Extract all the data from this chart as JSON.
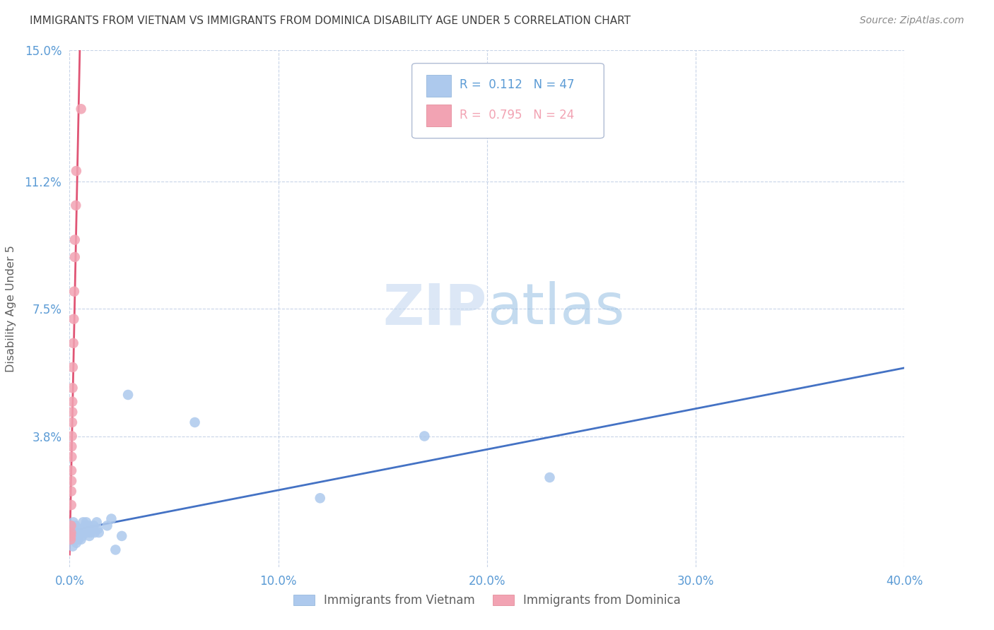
{
  "title": "IMMIGRANTS FROM VIETNAM VS IMMIGRANTS FROM DOMINICA DISABILITY AGE UNDER 5 CORRELATION CHART",
  "source": "Source: ZipAtlas.com",
  "ylabel": "Disability Age Under 5",
  "watermark_zip": "ZIP",
  "watermark_atlas": "atlas",
  "xlim": [
    0.0,
    0.4
  ],
  "ylim": [
    0.0,
    0.15
  ],
  "xticks": [
    0.0,
    0.1,
    0.2,
    0.3,
    0.4
  ],
  "xticklabels": [
    "0.0%",
    "10.0%",
    "20.0%",
    "30.0%",
    "40.0%"
  ],
  "ytick_vals": [
    0.038,
    0.075,
    0.112,
    0.15
  ],
  "yticklabels": [
    "3.8%",
    "7.5%",
    "11.2%",
    "15.0%"
  ],
  "vietnam_R": "0.112",
  "vietnam_N": "47",
  "dominica_R": "0.795",
  "dominica_N": "24",
  "color_vietnam": "#adc9ed",
  "color_dominica": "#f2a3b3",
  "color_line_vietnam": "#4472c4",
  "color_line_dominica": "#e05575",
  "color_axis_labels": "#5b9bd5",
  "color_title": "#404040",
  "color_source": "#888888",
  "legend_label_vietnam": "Immigrants from Vietnam",
  "legend_label_dominica": "Immigrants from Dominica",
  "vietnam_x": [
    0.0008,
    0.001,
    0.0012,
    0.0015,
    0.0015,
    0.0018,
    0.002,
    0.0022,
    0.0025,
    0.0025,
    0.0028,
    0.003,
    0.0032,
    0.0035,
    0.0038,
    0.004,
    0.0042,
    0.0045,
    0.0048,
    0.005,
    0.0055,
    0.006,
    0.0062,
    0.0065,
    0.0068,
    0.007,
    0.0075,
    0.008,
    0.0085,
    0.009,
    0.0095,
    0.01,
    0.011,
    0.0115,
    0.012,
    0.013,
    0.0135,
    0.014,
    0.018,
    0.02,
    0.022,
    0.025,
    0.028,
    0.06,
    0.12,
    0.17,
    0.23
  ],
  "vietnam_y": [
    0.012,
    0.008,
    0.01,
    0.009,
    0.006,
    0.013,
    0.008,
    0.009,
    0.01,
    0.011,
    0.012,
    0.008,
    0.007,
    0.009,
    0.01,
    0.011,
    0.008,
    0.009,
    0.01,
    0.011,
    0.008,
    0.009,
    0.01,
    0.013,
    0.01,
    0.011,
    0.012,
    0.013,
    0.01,
    0.012,
    0.009,
    0.01,
    0.011,
    0.012,
    0.01,
    0.013,
    0.011,
    0.01,
    0.012,
    0.014,
    0.005,
    0.009,
    0.05,
    0.042,
    0.02,
    0.038,
    0.026
  ],
  "dominica_x": [
    0.0005,
    0.0006,
    0.0007,
    0.0007,
    0.0008,
    0.0008,
    0.0009,
    0.0009,
    0.001,
    0.001,
    0.0011,
    0.0012,
    0.0013,
    0.0013,
    0.0014,
    0.0015,
    0.0018,
    0.002,
    0.0022,
    0.0025,
    0.0025,
    0.003,
    0.0032,
    0.0055
  ],
  "dominica_y": [
    0.008,
    0.009,
    0.01,
    0.012,
    0.018,
    0.022,
    0.025,
    0.028,
    0.032,
    0.035,
    0.038,
    0.042,
    0.045,
    0.048,
    0.052,
    0.058,
    0.065,
    0.072,
    0.08,
    0.09,
    0.095,
    0.105,
    0.115,
    0.133
  ]
}
